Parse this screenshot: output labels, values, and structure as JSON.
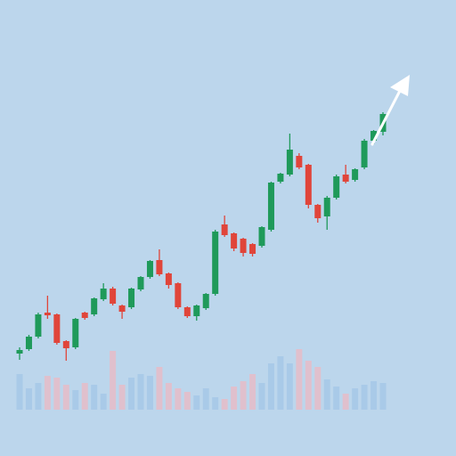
{
  "chart_data": {
    "type": "candlestick",
    "up_color": "#1f9a5a",
    "down_color": "#e0453a",
    "volume_up_color": "#a6c8e8",
    "volume_down_color": "#e6bcc8",
    "ylim": [
      0,
      512
    ],
    "y2lim": [
      0,
      80
    ],
    "open": [
      115,
      120,
      134,
      161,
      159,
      129,
      122,
      161,
      159,
      176,
      188,
      169,
      167,
      187,
      201,
      220,
      205,
      194,
      167,
      157,
      166,
      182,
      260,
      250,
      244,
      238,
      236,
      254,
      308,
      316,
      337,
      327,
      282,
      269,
      290,
      316,
      310,
      324,
      354,
      364
    ],
    "high": [
      122,
      136,
      161,
      180,
      160,
      130,
      155,
      162,
      178,
      194,
      190,
      170,
      189,
      202,
      220,
      232,
      206,
      195,
      168,
      170,
      183,
      254,
      270,
      251,
      245,
      239,
      258,
      308,
      318,
      362,
      340,
      328,
      283,
      292,
      316,
      327,
      323,
      356,
      366,
      386
    ],
    "low": [
      108,
      118,
      132,
      154,
      125,
      107,
      120,
      153,
      157,
      174,
      169,
      154,
      165,
      185,
      199,
      202,
      188,
      165,
      155,
      152,
      164,
      180,
      246,
      230,
      224,
      224,
      234,
      252,
      306,
      314,
      322,
      278,
      262,
      254,
      288,
      306,
      308,
      322,
      350,
      360
    ],
    "close": [
      119,
      134,
      159,
      158,
      127,
      121,
      154,
      155,
      177,
      188,
      171,
      162,
      188,
      201,
      219,
      204,
      192,
      167,
      157,
      169,
      182,
      252,
      248,
      233,
      228,
      227,
      257,
      307,
      317,
      344,
      324,
      282,
      267,
      290,
      314,
      308,
      322,
      354,
      365,
      384
    ],
    "volume": [
      40,
      24,
      30,
      38,
      36,
      28,
      22,
      30,
      28,
      18,
      66,
      28,
      36,
      40,
      38,
      48,
      30,
      24,
      20,
      16,
      24,
      14,
      12,
      26,
      32,
      40,
      30,
      52,
      60,
      52,
      68,
      55,
      48,
      34,
      26,
      18,
      24,
      28,
      32,
      30
    ]
  }
}
